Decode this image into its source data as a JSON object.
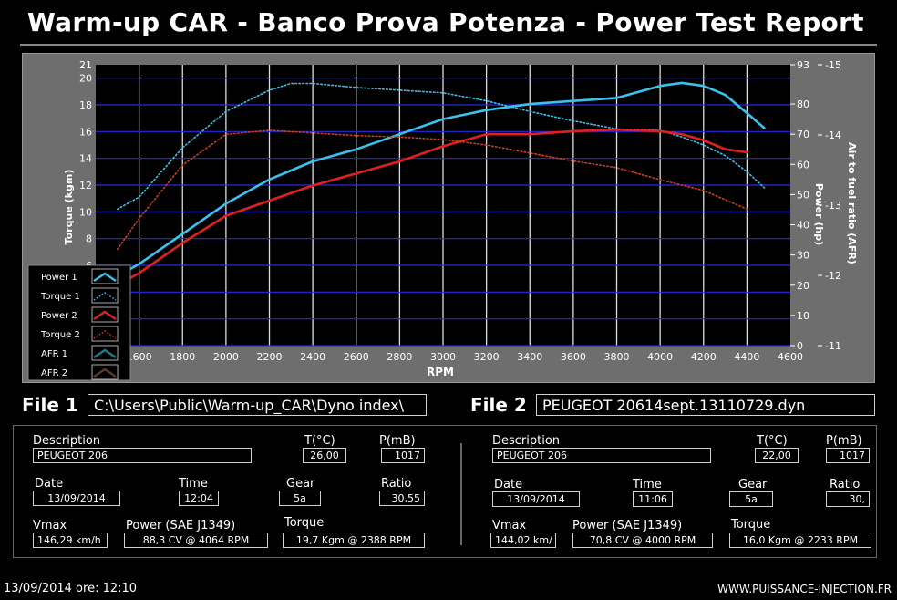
{
  "header": {
    "title": "Warm-up CAR  - Banco Prova Potenza -  Power Test Report"
  },
  "colors": {
    "power1": "#3cc0ec",
    "torque1": "#3cc0ec",
    "power2": "#e02020",
    "torque2": "#c84020",
    "afr1": "#1e7a8a",
    "afr2": "#5a3a2a",
    "grid": "#2a2ae0",
    "plot_bg": "#000000"
  },
  "chart_data": {
    "type": "line",
    "xlabel": "RPM",
    "ylabel_left": "Torque (kgm)",
    "ylabel_right1": "Power (hp)",
    "ylabel_right2": "Air to fuel ratio (AFR)",
    "xlim": [
      1400,
      4600
    ],
    "ylim_torque": [
      0,
      21
    ],
    "ylim_power": [
      0,
      93
    ],
    "ylim_afr": [
      -11,
      -15
    ],
    "x_ticks": [
      "1600",
      "1800",
      "2000",
      "2200",
      "2400",
      "2600",
      "2800",
      "3000",
      "3200",
      "3400",
      "3600",
      "3800",
      "4000",
      "4200",
      "4400",
      "4600"
    ],
    "torque_ticks": [
      "6",
      "8",
      "10",
      "12",
      "14",
      "16",
      "18",
      "20",
      "21"
    ],
    "power_ticks": [
      "0",
      "10",
      "20",
      "30",
      "40",
      "50",
      "60",
      "70",
      "80",
      "93"
    ],
    "afr_ticks": [
      "-11",
      "-12",
      "-13",
      "-14",
      "-15"
    ],
    "legend": [
      {
        "name": "Power 1",
        "style": "solid",
        "color": "#3cc0ec"
      },
      {
        "name": "Torque 1",
        "style": "dotted",
        "color": "#3cc0ec"
      },
      {
        "name": "Power 2",
        "style": "solid",
        "color": "#e02020"
      },
      {
        "name": "Torque 2",
        "style": "dotted",
        "color": "#c84020"
      },
      {
        "name": "AFR 1",
        "style": "solid",
        "color": "#1e7a8a"
      },
      {
        "name": "AFR 2",
        "style": "solid",
        "color": "#5a3a2a"
      }
    ],
    "series": [
      {
        "name": "Power 1",
        "axis": "power",
        "style": "solid",
        "color": "#3cc0ec",
        "x": [
          1400,
          1500,
          1600,
          1800,
          2000,
          2200,
          2400,
          2600,
          2800,
          3000,
          3200,
          3400,
          3600,
          3800,
          4000,
          4100,
          4200,
          4300,
          4400,
          4480
        ],
        "y": [
          19,
          23,
          27,
          37,
          47,
          55,
          61,
          65,
          70,
          75,
          78,
          80,
          81,
          82,
          86,
          87,
          86,
          83,
          77,
          72
        ]
      },
      {
        "name": "Torque 1",
        "axis": "torque",
        "style": "dotted",
        "color": "#3cc0ec",
        "x": [
          1500,
          1600,
          1800,
          2000,
          2200,
          2300,
          2400,
          2600,
          2800,
          3000,
          3200,
          3400,
          3600,
          3800,
          4000,
          4100,
          4200,
          4300,
          4400,
          4480
        ],
        "y": [
          10.2,
          11.1,
          14.8,
          17.5,
          19.1,
          19.6,
          19.6,
          19.3,
          19.1,
          18.9,
          18.3,
          17.5,
          16.8,
          16.2,
          16.1,
          15.6,
          15.0,
          14.2,
          13.0,
          11.8
        ]
      },
      {
        "name": "Power 2",
        "axis": "power",
        "style": "solid",
        "color": "#e02020",
        "x": [
          1400,
          1500,
          1600,
          1800,
          2000,
          2200,
          2400,
          2600,
          2800,
          3000,
          3200,
          3400,
          3600,
          3800,
          4000,
          4100,
          4200,
          4300,
          4400
        ],
        "y": [
          17,
          20,
          24,
          34,
          43,
          48,
          53,
          57,
          61,
          66,
          70,
          70,
          71,
          71.5,
          71,
          70,
          68,
          65,
          64
        ]
      },
      {
        "name": "Torque 2",
        "axis": "torque",
        "style": "dotted",
        "color": "#c84020",
        "x": [
          1500,
          1600,
          1800,
          2000,
          2200,
          2400,
          2600,
          2800,
          3000,
          3200,
          3400,
          3600,
          3800,
          4000,
          4200,
          4300,
          4400
        ],
        "y": [
          7.2,
          9.5,
          13.5,
          15.8,
          16.1,
          15.9,
          15.7,
          15.6,
          15.4,
          15.0,
          14.4,
          13.8,
          13.3,
          12.4,
          11.6,
          10.9,
          10.2
        ]
      }
    ]
  },
  "file1": {
    "label": "File 1",
    "path": "C:\\Users\\Public\\Warm-up_CAR\\Dyno index\\"
  },
  "file2": {
    "label": "File 2",
    "path": "PEUGEOT 20614sept.13110729.dyn"
  },
  "labels": {
    "description": "Description",
    "temp": "T(°C)",
    "pressure": "P(mB)",
    "date": "Date",
    "time": "Time",
    "gear": "Gear",
    "ratio": "Ratio",
    "vmax": "Vmax",
    "power": "Power (SAE J1349)",
    "torque": "Torque"
  },
  "run1": {
    "description": "PEUGEOT 206",
    "temp": "26,00",
    "pressure": "1017",
    "date": "13/09/2014",
    "time": "12:04",
    "gear": "5a",
    "ratio": "30,55",
    "vmax": "146,29 km/h",
    "power": "88,3 CV  @ 4064  RPM",
    "torque": "19,7 Kgm  @ 2388  RPM"
  },
  "run2": {
    "description": "PEUGEOT 206",
    "temp": "22,00",
    "pressure": "1017",
    "date": "13/09/2014",
    "time": "11:06",
    "gear": "5a",
    "ratio": "30,",
    "vmax": "144,02 km/",
    "power": "70,8 CV  @ 4000  RPM",
    "torque": "16,0 Kgm  @ 2233  RPM"
  },
  "footer": {
    "datetime": "13/09/2014  ore: 12:10",
    "website": "WWW.PUISSANCE-INJECTION.FR"
  }
}
